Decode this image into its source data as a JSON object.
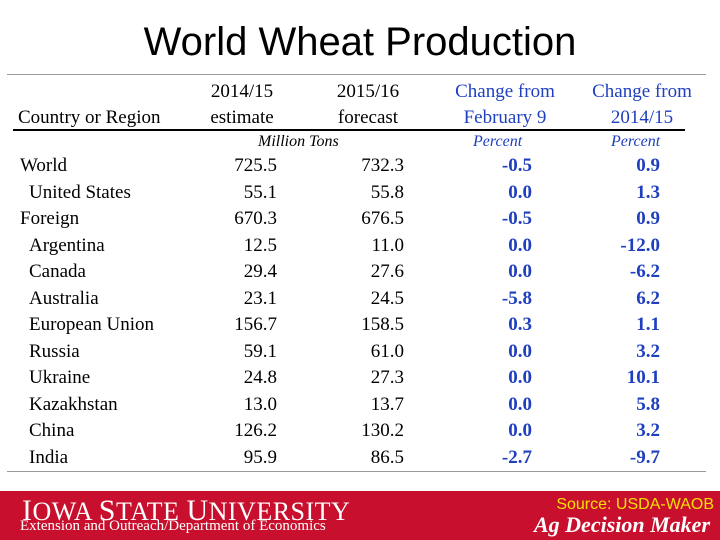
{
  "title": "World Wheat Production",
  "headers": {
    "country": "Country or Region",
    "est_line1": "2014/15",
    "est_line2": "estimate",
    "fc_line1": "2015/16",
    "fc_line2": "forecast",
    "chg1_line1": "Change from",
    "chg1_line2": "February 9",
    "chg2_line1": "Change from",
    "chg2_line2": "2014/15"
  },
  "units": {
    "tons": "Million Tons",
    "pct1": "Percent",
    "pct2": "Percent"
  },
  "rows": [
    {
      "name": "World",
      "est": "725.5",
      "fc": "732.3",
      "chg1": "-0.5",
      "chg2": "0.9"
    },
    {
      "name": "United States",
      "est": "55.1",
      "fc": "55.8",
      "chg1": "0.0",
      "chg2": "1.3"
    },
    {
      "name": "Foreign",
      "est": "670.3",
      "fc": "676.5",
      "chg1": "-0.5",
      "chg2": "0.9"
    },
    {
      "name": "Argentina",
      "est": "12.5",
      "fc": "11.0",
      "chg1": "0.0",
      "chg2": "-12.0"
    },
    {
      "name": "Canada",
      "est": "29.4",
      "fc": "27.6",
      "chg1": "0.0",
      "chg2": "-6.2"
    },
    {
      "name": "Australia",
      "est": "23.1",
      "fc": "24.5",
      "chg1": "-5.8",
      "chg2": "6.2"
    },
    {
      "name": "European Union",
      "est": "156.7",
      "fc": "158.5",
      "chg1": "0.3",
      "chg2": "1.1"
    },
    {
      "name": "Russia",
      "est": "59.1",
      "fc": "61.0",
      "chg1": "0.0",
      "chg2": "3.2"
    },
    {
      "name": "Ukraine",
      "est": "24.8",
      "fc": "27.3",
      "chg1": "0.0",
      "chg2": "10.1"
    },
    {
      "name": "Kazakhstan",
      "est": "13.0",
      "fc": "13.7",
      "chg1": "0.0",
      "chg2": "5.8"
    },
    {
      "name": "China",
      "est": "126.2",
      "fc": "130.2",
      "chg1": "0.0",
      "chg2": "3.2"
    },
    {
      "name": "India",
      "est": "95.9",
      "fc": "86.5",
      "chg1": "-2.7",
      "chg2": "-9.7"
    }
  ],
  "footer": {
    "university_cap1": "I",
    "university_rest1": "OWA ",
    "university_cap2": "S",
    "university_rest2": "TATE ",
    "university_cap3": "U",
    "university_rest3": "NIVERSITY",
    "department": "Extension and Outreach/Department of Economics",
    "source": "Source: USDA-WAOB",
    "brand": "Ag Decision Maker"
  },
  "colors": {
    "blue": "#1f3fbf",
    "footer_red": "#c8102e",
    "source_yellow": "#f5e000"
  }
}
